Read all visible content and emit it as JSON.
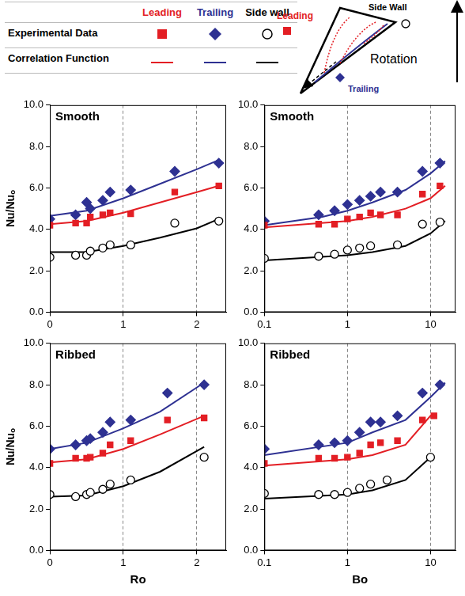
{
  "legend_table": {
    "columns": [
      "Leading",
      "Trailing",
      "Side wall"
    ],
    "rows": [
      "Experimental Data",
      "Correlation Function"
    ]
  },
  "diagram": {
    "leading": "Leading",
    "trailing": "Trailing",
    "side_wall": "Side Wall",
    "caption": "Rotation"
  },
  "chart_data": [
    {
      "type": "scatter",
      "title": "Smooth",
      "ylabel": "Nu/Nuₒ",
      "xlim": [
        0,
        2.4
      ],
      "xticks": [
        0,
        1,
        2
      ],
      "ylim": [
        0,
        10
      ],
      "yticks": [
        {
          "value": 0,
          "label": "0.0"
        },
        {
          "value": 2,
          "label": "2.0"
        },
        {
          "value": 4,
          "label": "4.0"
        },
        {
          "value": 6,
          "label": "6.0"
        },
        {
          "value": 8,
          "label": "8.0"
        },
        {
          "value": 10,
          "label": "10.0"
        }
      ],
      "grid": "x",
      "series": [
        {
          "name": "Leading",
          "type": "scatter",
          "marker": "square",
          "color": "#e31e24",
          "x": [
            0,
            0.35,
            0.5,
            0.55,
            0.72,
            0.82,
            1.1,
            1.7,
            2.3
          ],
          "values": [
            4.2,
            4.3,
            4.3,
            4.6,
            4.7,
            4.8,
            4.75,
            5.8,
            6.1
          ]
        },
        {
          "name": "Trailing",
          "type": "scatter",
          "marker": "diamond",
          "color": "#2e3192",
          "x": [
            0,
            0.35,
            0.5,
            0.55,
            0.72,
            0.82,
            1.1,
            1.7,
            2.3
          ],
          "values": [
            4.5,
            4.7,
            5.3,
            5.0,
            5.4,
            5.8,
            5.9,
            6.8,
            7.2
          ]
        },
        {
          "name": "Side wall",
          "type": "scatter",
          "marker": "open_circle",
          "color": "#000000",
          "x": [
            0,
            0.35,
            0.5,
            0.55,
            0.72,
            0.82,
            1.1,
            1.7,
            2.3
          ],
          "values": [
            2.65,
            2.75,
            2.75,
            2.95,
            3.1,
            3.25,
            3.25,
            4.3,
            4.4
          ]
        },
        {
          "name": "Leading",
          "type": "line",
          "color": "#e31e24",
          "x": [
            0,
            0.5,
            1,
            1.5,
            2,
            2.3
          ],
          "values": [
            4.25,
            4.4,
            4.8,
            5.3,
            5.8,
            6.1
          ]
        },
        {
          "name": "Trailing",
          "type": "line",
          "color": "#2e3192",
          "x": [
            0,
            0.5,
            1,
            1.5,
            2,
            2.3
          ],
          "values": [
            4.65,
            4.9,
            5.5,
            6.2,
            6.9,
            7.35
          ]
        },
        {
          "name": "Side wall",
          "type": "line",
          "color": "#000000",
          "x": [
            0,
            0.5,
            1,
            1.5,
            2,
            2.3
          ],
          "values": [
            2.9,
            2.9,
            3.2,
            3.6,
            4.05,
            4.5
          ]
        }
      ]
    },
    {
      "type": "scatter",
      "title": "Smooth",
      "log": "x",
      "xlim": [
        0.1,
        20
      ],
      "xticks": [
        0.1,
        1,
        10
      ],
      "ylim": [
        0,
        10
      ],
      "yticks": [
        {
          "value": 0,
          "label": "0.0"
        },
        {
          "value": 2,
          "label": "2.0"
        },
        {
          "value": 4,
          "label": "4.0"
        },
        {
          "value": 6,
          "label": "6.0"
        },
        {
          "value": 8,
          "label": "8.0"
        },
        {
          "value": 10,
          "label": "10.0"
        }
      ],
      "grid": "x",
      "series": [
        {
          "name": "Leading",
          "type": "scatter",
          "marker": "square",
          "color": "#e31e24",
          "x": [
            0.1,
            0.45,
            0.7,
            1,
            1.4,
            1.9,
            2.5,
            4,
            8,
            13
          ],
          "values": [
            4.2,
            4.25,
            4.25,
            4.5,
            4.6,
            4.8,
            4.7,
            4.7,
            5.7,
            6.1
          ]
        },
        {
          "name": "Trailing",
          "type": "scatter",
          "marker": "diamond",
          "color": "#2e3192",
          "x": [
            0.1,
            0.45,
            0.7,
            1,
            1.4,
            1.9,
            2.5,
            4,
            8,
            13
          ],
          "values": [
            4.4,
            4.7,
            4.9,
            5.2,
            5.4,
            5.6,
            5.8,
            5.8,
            6.8,
            7.2
          ]
        },
        {
          "name": "Side wall",
          "type": "scatter",
          "marker": "open_circle",
          "color": "#000000",
          "x": [
            0.1,
            0.45,
            0.7,
            1,
            1.4,
            1.9,
            4,
            8,
            13
          ],
          "values": [
            2.6,
            2.7,
            2.8,
            3.0,
            3.1,
            3.2,
            3.25,
            4.25,
            4.35
          ]
        },
        {
          "name": "Leading",
          "type": "line",
          "color": "#e31e24",
          "x": [
            0.1,
            1,
            2,
            5,
            10,
            15
          ],
          "values": [
            4.1,
            4.4,
            4.6,
            5.0,
            5.5,
            6.1
          ]
        },
        {
          "name": "Trailing",
          "type": "line",
          "color": "#2e3192",
          "x": [
            0.1,
            0.5,
            1,
            2,
            5,
            10,
            15
          ],
          "values": [
            4.2,
            4.6,
            4.9,
            5.3,
            5.9,
            6.7,
            7.3
          ]
        },
        {
          "name": "Side wall",
          "type": "line",
          "color": "#000000",
          "x": [
            0.1,
            1,
            2,
            5,
            10,
            15
          ],
          "values": [
            2.5,
            2.75,
            2.9,
            3.2,
            3.8,
            4.4
          ]
        }
      ]
    },
    {
      "type": "scatter",
      "title": "Ribbed",
      "xlabel": "Ro",
      "ylabel": "Nu/Nuₒ",
      "xlim": [
        0,
        2.4
      ],
      "xticks": [
        0,
        1,
        2
      ],
      "ylim": [
        0,
        10
      ],
      "yticks": [
        {
          "value": 0,
          "label": "0.0"
        },
        {
          "value": 2,
          "label": "2.0"
        },
        {
          "value": 4,
          "label": "4.0"
        },
        {
          "value": 6,
          "label": "6.0"
        },
        {
          "value": 8,
          "label": "8.0"
        },
        {
          "value": 10,
          "label": "10.0"
        }
      ],
      "grid": "x",
      "series": [
        {
          "name": "Leading",
          "type": "scatter",
          "marker": "square",
          "color": "#e31e24",
          "x": [
            0,
            0.35,
            0.5,
            0.55,
            0.72,
            0.82,
            1.1,
            1.6,
            2.1
          ],
          "values": [
            4.2,
            4.45,
            4.45,
            4.5,
            4.7,
            5.1,
            5.3,
            6.3,
            6.4
          ]
        },
        {
          "name": "Trailing",
          "type": "scatter",
          "marker": "diamond",
          "color": "#2e3192",
          "x": [
            0,
            0.35,
            0.5,
            0.55,
            0.72,
            0.82,
            1.1,
            1.6,
            2.1
          ],
          "values": [
            4.9,
            5.1,
            5.3,
            5.4,
            5.7,
            6.2,
            6.3,
            7.6,
            8.0
          ]
        },
        {
          "name": "Side wall",
          "type": "scatter",
          "marker": "open_circle",
          "color": "#000000",
          "x": [
            0,
            0.35,
            0.5,
            0.55,
            0.72,
            0.82,
            1.1,
            2.1
          ],
          "values": [
            2.7,
            2.6,
            2.7,
            2.8,
            2.95,
            3.2,
            3.4,
            4.5
          ]
        },
        {
          "name": "Leading",
          "type": "line",
          "color": "#e31e24",
          "x": [
            0,
            0.5,
            1,
            1.5,
            2.1
          ],
          "values": [
            4.25,
            4.4,
            4.9,
            5.6,
            6.5
          ]
        },
        {
          "name": "Trailing",
          "type": "line",
          "color": "#2e3192",
          "x": [
            0,
            0.5,
            1,
            1.5,
            2.1
          ],
          "values": [
            4.9,
            5.2,
            5.9,
            6.7,
            8.1
          ]
        },
        {
          "name": "Side wall",
          "type": "line",
          "color": "#000000",
          "x": [
            0,
            0.5,
            1,
            1.5,
            2.1
          ],
          "values": [
            2.6,
            2.65,
            3.1,
            3.8,
            5.0
          ]
        }
      ]
    },
    {
      "type": "scatter",
      "title": "Ribbed",
      "xlabel": "Bo",
      "log": "x",
      "xlim": [
        0.1,
        20
      ],
      "xticks": [
        0.1,
        1,
        10
      ],
      "ylim": [
        0,
        10
      ],
      "yticks": [
        {
          "value": 0,
          "label": "0.0"
        },
        {
          "value": 2,
          "label": "2.0"
        },
        {
          "value": 4,
          "label": "4.0"
        },
        {
          "value": 6,
          "label": "6.0"
        },
        {
          "value": 8,
          "label": "8.0"
        },
        {
          "value": 10,
          "label": "10.0"
        }
      ],
      "grid": "x",
      "series": [
        {
          "name": "Leading",
          "type": "scatter",
          "marker": "square",
          "color": "#e31e24",
          "x": [
            0.1,
            0.45,
            0.7,
            1,
            1.4,
            1.9,
            2.5,
            4,
            8,
            11
          ],
          "values": [
            4.2,
            4.45,
            4.45,
            4.5,
            4.7,
            5.1,
            5.2,
            5.3,
            6.3,
            6.5
          ]
        },
        {
          "name": "Trailing",
          "type": "scatter",
          "marker": "diamond",
          "color": "#2e3192",
          "x": [
            0.1,
            0.45,
            0.7,
            1,
            1.4,
            1.9,
            2.5,
            4,
            8,
            13
          ],
          "values": [
            4.9,
            5.1,
            5.2,
            5.3,
            5.7,
            6.2,
            6.2,
            6.5,
            7.6,
            8.0
          ]
        },
        {
          "name": "Side wall",
          "type": "scatter",
          "marker": "open_circle",
          "color": "#000000",
          "x": [
            0.1,
            0.45,
            0.7,
            1,
            1.4,
            1.9,
            3,
            10
          ],
          "values": [
            2.75,
            2.7,
            2.7,
            2.8,
            3.0,
            3.2,
            3.4,
            4.5
          ]
        },
        {
          "name": "Leading",
          "type": "line",
          "color": "#e31e24",
          "x": [
            0.1,
            1,
            2,
            5,
            10,
            11
          ],
          "values": [
            4.1,
            4.4,
            4.6,
            5.1,
            6.5,
            6.6
          ]
        },
        {
          "name": "Trailing",
          "type": "line",
          "color": "#2e3192",
          "x": [
            0.1,
            1,
            2,
            5,
            10,
            15
          ],
          "values": [
            4.6,
            5.2,
            5.7,
            6.3,
            7.4,
            8.1
          ]
        },
        {
          "name": "Side wall",
          "type": "line",
          "color": "#000000",
          "x": [
            0.1,
            1,
            2,
            5,
            10
          ],
          "values": [
            2.5,
            2.7,
            2.9,
            3.4,
            4.5
          ]
        }
      ]
    }
  ]
}
